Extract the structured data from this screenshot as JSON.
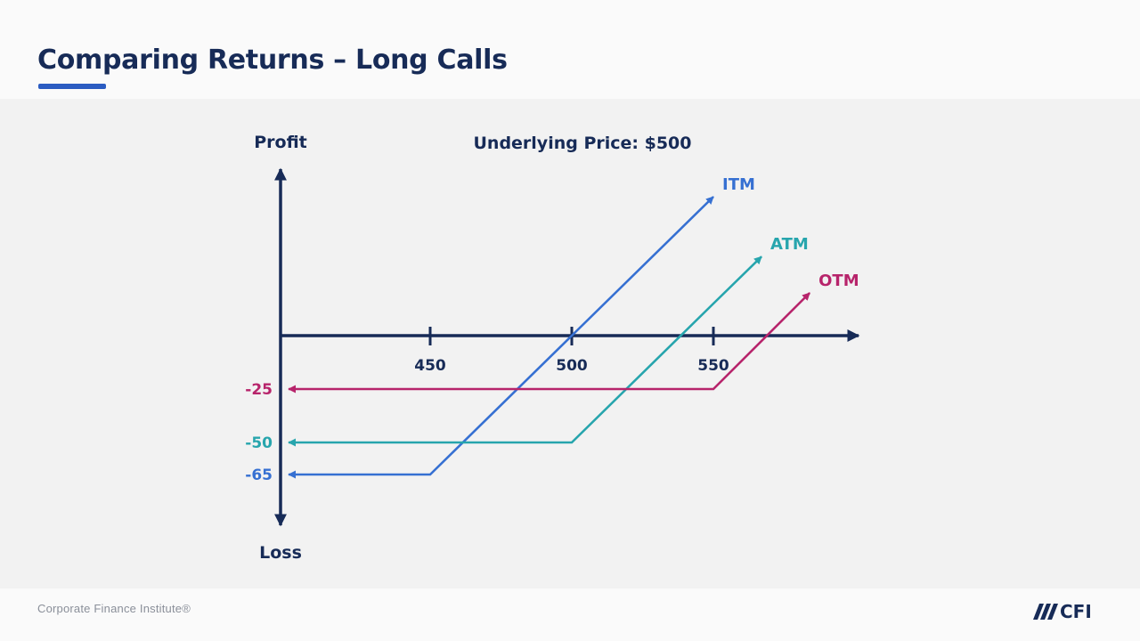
{
  "slide": {
    "title": "Comparing Returns – Long Calls",
    "footer": "Corporate Finance Institute®",
    "logo_text": "CFI"
  },
  "colors": {
    "navy": "#172b57",
    "accent": "#2b5cc2",
    "panel_bg": "#f2f2f2",
    "itm": "#3670d2",
    "atm": "#27a5ad",
    "otm": "#b7246b"
  },
  "chart_data": {
    "type": "line",
    "title": "Underlying Price: $500",
    "ylabel_top": "Profit",
    "ylabel_bottom": "Loss",
    "x_ticks": [
      450,
      500,
      550
    ],
    "xlim": [
      400,
      595
    ],
    "ylim": [
      -83,
      70
    ],
    "grid": false,
    "series": [
      {
        "name": "ITM",
        "color": "#3670d2",
        "y_label": "-65",
        "points": [
          [
            400,
            -65
          ],
          [
            450,
            -65
          ],
          [
            500,
            0
          ],
          [
            550,
            65
          ]
        ]
      },
      {
        "name": "ATM",
        "color": "#27a5ad",
        "y_label": "-50",
        "points": [
          [
            400,
            -50
          ],
          [
            500,
            -50
          ],
          [
            550,
            15
          ],
          [
            567,
            37
          ]
        ]
      },
      {
        "name": "OTM",
        "color": "#b7246b",
        "y_label": "-25",
        "points": [
          [
            400,
            -25
          ],
          [
            550,
            -25
          ],
          [
            584,
            20
          ]
        ]
      }
    ]
  }
}
